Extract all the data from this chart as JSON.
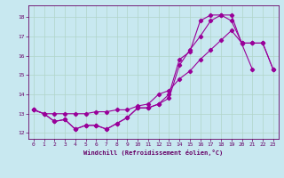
{
  "xlabel": "Windchill (Refroidissement éolien,°C)",
  "background_color": "#c8e8f0",
  "grid_color": "#b0d4c8",
  "line_color": "#990099",
  "xlim": [
    -0.5,
    23.5
  ],
  "ylim": [
    11.7,
    18.6
  ],
  "yticks": [
    12,
    13,
    14,
    15,
    16,
    17,
    18
  ],
  "xticks": [
    0,
    1,
    2,
    3,
    4,
    5,
    6,
    7,
    8,
    9,
    10,
    11,
    12,
    13,
    14,
    15,
    16,
    17,
    18,
    19,
    20,
    21,
    22,
    23
  ],
  "line1_x": [
    0,
    1,
    2,
    3,
    4,
    5,
    6,
    7,
    8,
    9,
    10,
    11,
    12,
    13,
    14,
    15,
    16,
    17,
    18,
    19,
    20,
    21
  ],
  "line1_y": [
    13.2,
    13.0,
    12.6,
    12.7,
    12.2,
    12.4,
    12.4,
    12.2,
    12.5,
    12.8,
    13.3,
    13.3,
    13.5,
    13.8,
    15.5,
    16.3,
    17.0,
    17.8,
    18.1,
    18.1,
    16.6,
    15.3
  ],
  "line2_x": [
    0,
    1,
    2,
    3,
    4,
    5,
    6,
    7,
    8,
    9,
    10,
    11,
    12,
    13,
    14,
    15,
    16,
    17,
    18,
    19,
    20,
    21,
    22,
    23
  ],
  "line2_y": [
    13.2,
    13.0,
    12.6,
    12.7,
    12.2,
    12.4,
    12.4,
    12.2,
    12.5,
    12.8,
    13.3,
    13.3,
    13.5,
    14.0,
    15.8,
    16.2,
    17.8,
    18.1,
    18.1,
    17.8,
    16.65,
    16.65,
    16.65,
    15.3
  ],
  "line3_x": [
    0,
    1,
    2,
    3,
    4,
    5,
    6,
    7,
    8,
    9,
    10,
    11,
    12,
    13,
    14,
    15,
    16,
    17,
    18,
    19,
    20,
    21,
    22,
    23
  ],
  "line3_y": [
    13.2,
    13.0,
    13.0,
    13.0,
    13.0,
    13.0,
    13.1,
    13.1,
    13.2,
    13.2,
    13.4,
    13.5,
    14.0,
    14.2,
    14.8,
    15.2,
    15.8,
    16.3,
    16.8,
    17.3,
    16.65,
    16.65,
    16.65,
    15.3
  ],
  "marker_size": 2.2,
  "linewidth": 0.8,
  "tick_labelsize": 4.5,
  "xlabel_fontsize": 5.0
}
